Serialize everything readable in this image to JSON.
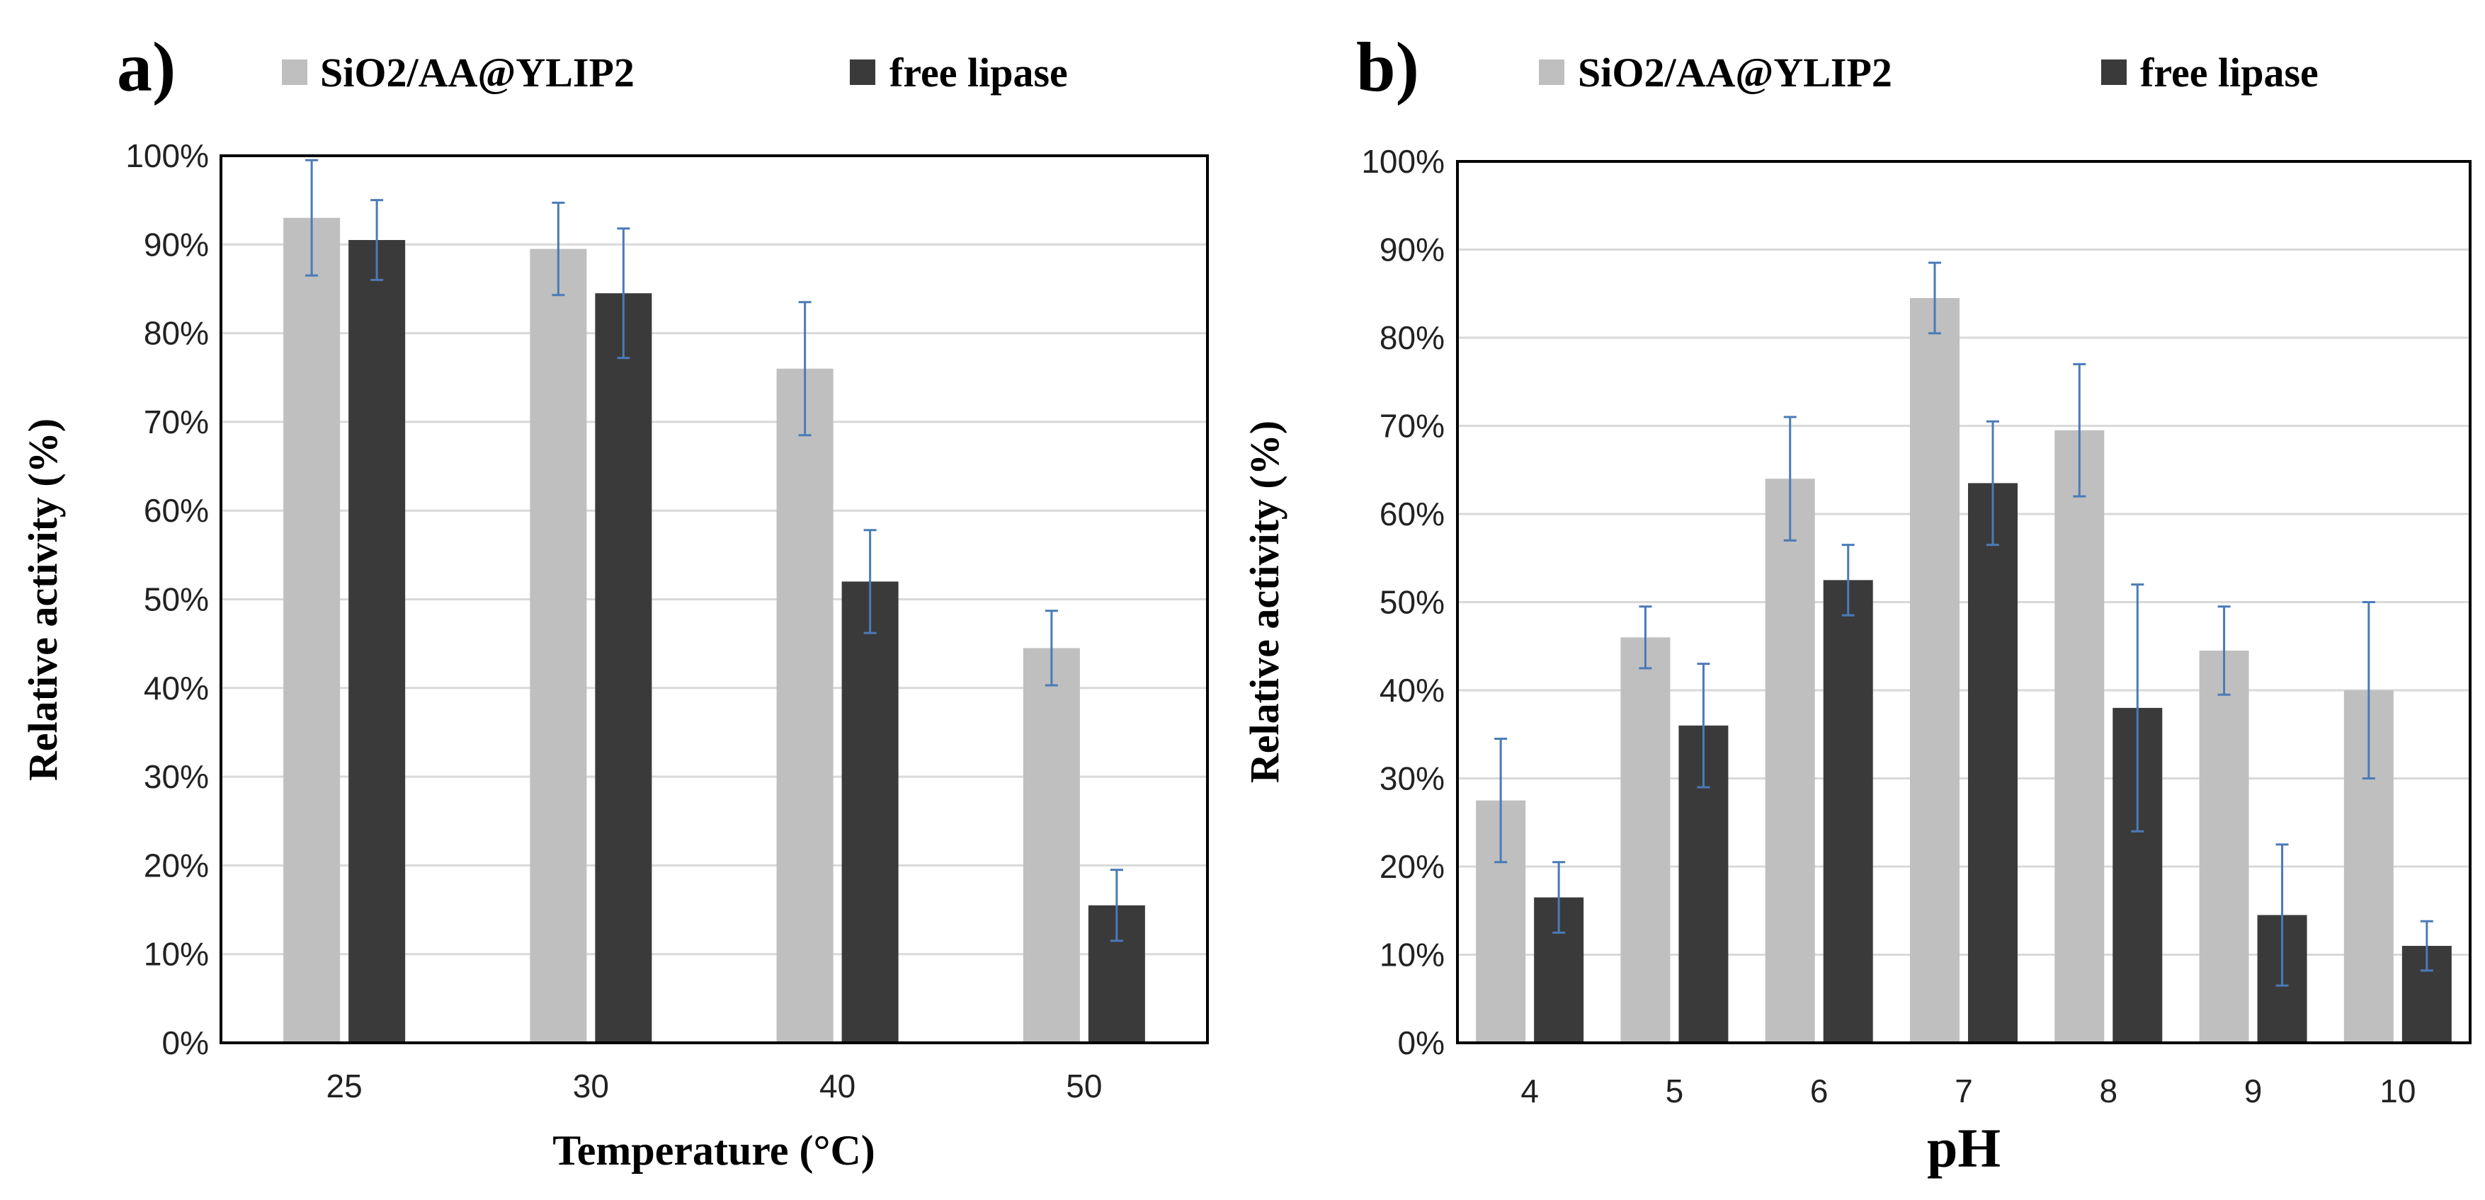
{
  "colors": {
    "immobilized": "#bfbfbf",
    "free": "#3a3a3a",
    "error": "#4a7bb7"
  },
  "chart_data": [
    {
      "panel": "a)",
      "type": "bar",
      "title": "",
      "xlabel": "Temperature (°C)",
      "ylabel": "Relative activity (%)",
      "ylim": [
        0,
        100
      ],
      "yticks": [
        0,
        10,
        20,
        30,
        40,
        50,
        60,
        70,
        80,
        90,
        100
      ],
      "ytick_labels": [
        "0%",
        "10%",
        "20%",
        "30%",
        "40%",
        "50%",
        "60%",
        "70%",
        "80%",
        "90%",
        "100%"
      ],
      "categories": [
        "25",
        "30",
        "40",
        "50"
      ],
      "series": [
        {
          "name": "SiO2/AA@YLIP2",
          "values": [
            93,
            89.5,
            76,
            44.5
          ],
          "errors": [
            6.5,
            5.2,
            7.5,
            4.2
          ]
        },
        {
          "name": "free lipase",
          "values": [
            90.5,
            84.5,
            52,
            15.5
          ],
          "errors": [
            4.5,
            7.3,
            5.8,
            4
          ]
        }
      ],
      "legend": "top"
    },
    {
      "panel": "b)",
      "type": "bar",
      "title": "",
      "xlabel": "pH",
      "ylabel": "Relative activity (%)",
      "ylim": [
        0,
        100
      ],
      "yticks": [
        0,
        10,
        20,
        30,
        40,
        50,
        60,
        70,
        80,
        90,
        100
      ],
      "ytick_labels": [
        "0%",
        "10%",
        "20%",
        "30%",
        "40%",
        "50%",
        "60%",
        "70%",
        "80%",
        "90%",
        "100%"
      ],
      "categories": [
        "4",
        "5",
        "6",
        "7",
        "8",
        "9",
        "10"
      ],
      "series": [
        {
          "name": "SiO2/AA@YLIP2",
          "values": [
            27.5,
            46,
            64,
            84.5,
            69.5,
            44.5,
            40
          ],
          "errors": [
            7,
            3.5,
            7,
            4,
            7.5,
            5,
            10
          ]
        },
        {
          "name": "free lipase",
          "values": [
            16.5,
            36,
            52.5,
            63.5,
            38,
            14.5,
            11
          ],
          "errors": [
            4,
            7,
            4,
            7,
            14,
            8,
            2.8
          ]
        }
      ],
      "legend": "top"
    }
  ]
}
